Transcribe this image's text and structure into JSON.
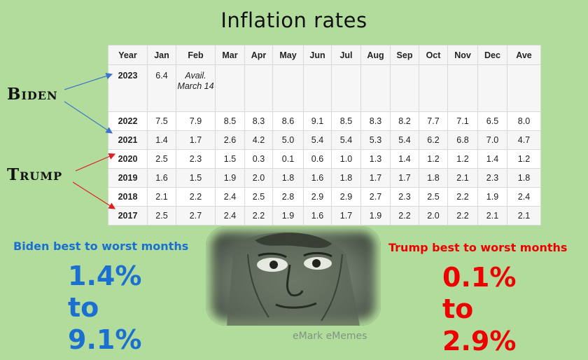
{
  "title": "Inflation rates",
  "table": {
    "headers": [
      "Year",
      "Jan",
      "Feb",
      "Mar",
      "Apr",
      "May",
      "Jun",
      "Jul",
      "Aug",
      "Sep",
      "Oct",
      "Nov",
      "Dec",
      "Ave"
    ],
    "rows": [
      [
        "2023",
        "6.4",
        "Avail. March 14",
        "",
        "",
        "",
        "",
        "",
        "",
        "",
        "",
        "",
        "",
        ""
      ],
      [
        "2022",
        "7.5",
        "7.9",
        "8.5",
        "8.3",
        "8.6",
        "9.1",
        "8.5",
        "8.3",
        "8.2",
        "7.7",
        "7.1",
        "6.5",
        "8.0"
      ],
      [
        "2021",
        "1.4",
        "1.7",
        "2.6",
        "4.2",
        "5.0",
        "5.4",
        "5.4",
        "5.3",
        "5.4",
        "6.2",
        "6.8",
        "7.0",
        "4.7"
      ],
      [
        "2020",
        "2.5",
        "2.3",
        "1.5",
        "0.3",
        "0.1",
        "0.6",
        "1.0",
        "1.3",
        "1.4",
        "1.2",
        "1.2",
        "1.4",
        "1.2"
      ],
      [
        "2019",
        "1.6",
        "1.5",
        "1.9",
        "2.0",
        "1.8",
        "1.6",
        "1.8",
        "1.7",
        "1.7",
        "1.8",
        "2.1",
        "2.3",
        "1.8"
      ],
      [
        "2018",
        "2.1",
        "2.2",
        "2.4",
        "2.5",
        "2.8",
        "2.9",
        "2.9",
        "2.7",
        "2.3",
        "2.5",
        "2.2",
        "1.9",
        "2.4"
      ],
      [
        "2017",
        "2.5",
        "2.7",
        "2.4",
        "2.2",
        "1.9",
        "1.6",
        "1.7",
        "1.9",
        "2.2",
        "2.0",
        "2.2",
        "2.1",
        "2.1"
      ]
    ]
  },
  "labels": {
    "biden": "Biden",
    "trump": "Trump"
  },
  "biden_summary": {
    "heading": "Biden best to worst months",
    "low": "1.4%",
    "to": "to",
    "high": "9.1%"
  },
  "trump_summary": {
    "heading": "Trump best to worst months",
    "low": "0.1%",
    "to": "to",
    "high": "2.9%"
  },
  "credit": "eMark eMemes",
  "colors": {
    "background": "#b2dc9c",
    "biden_blue": "#1a6fd1",
    "trump_red": "#ee0000",
    "biden_arrow": "#3d73c8",
    "trump_arrow": "#e02020"
  }
}
